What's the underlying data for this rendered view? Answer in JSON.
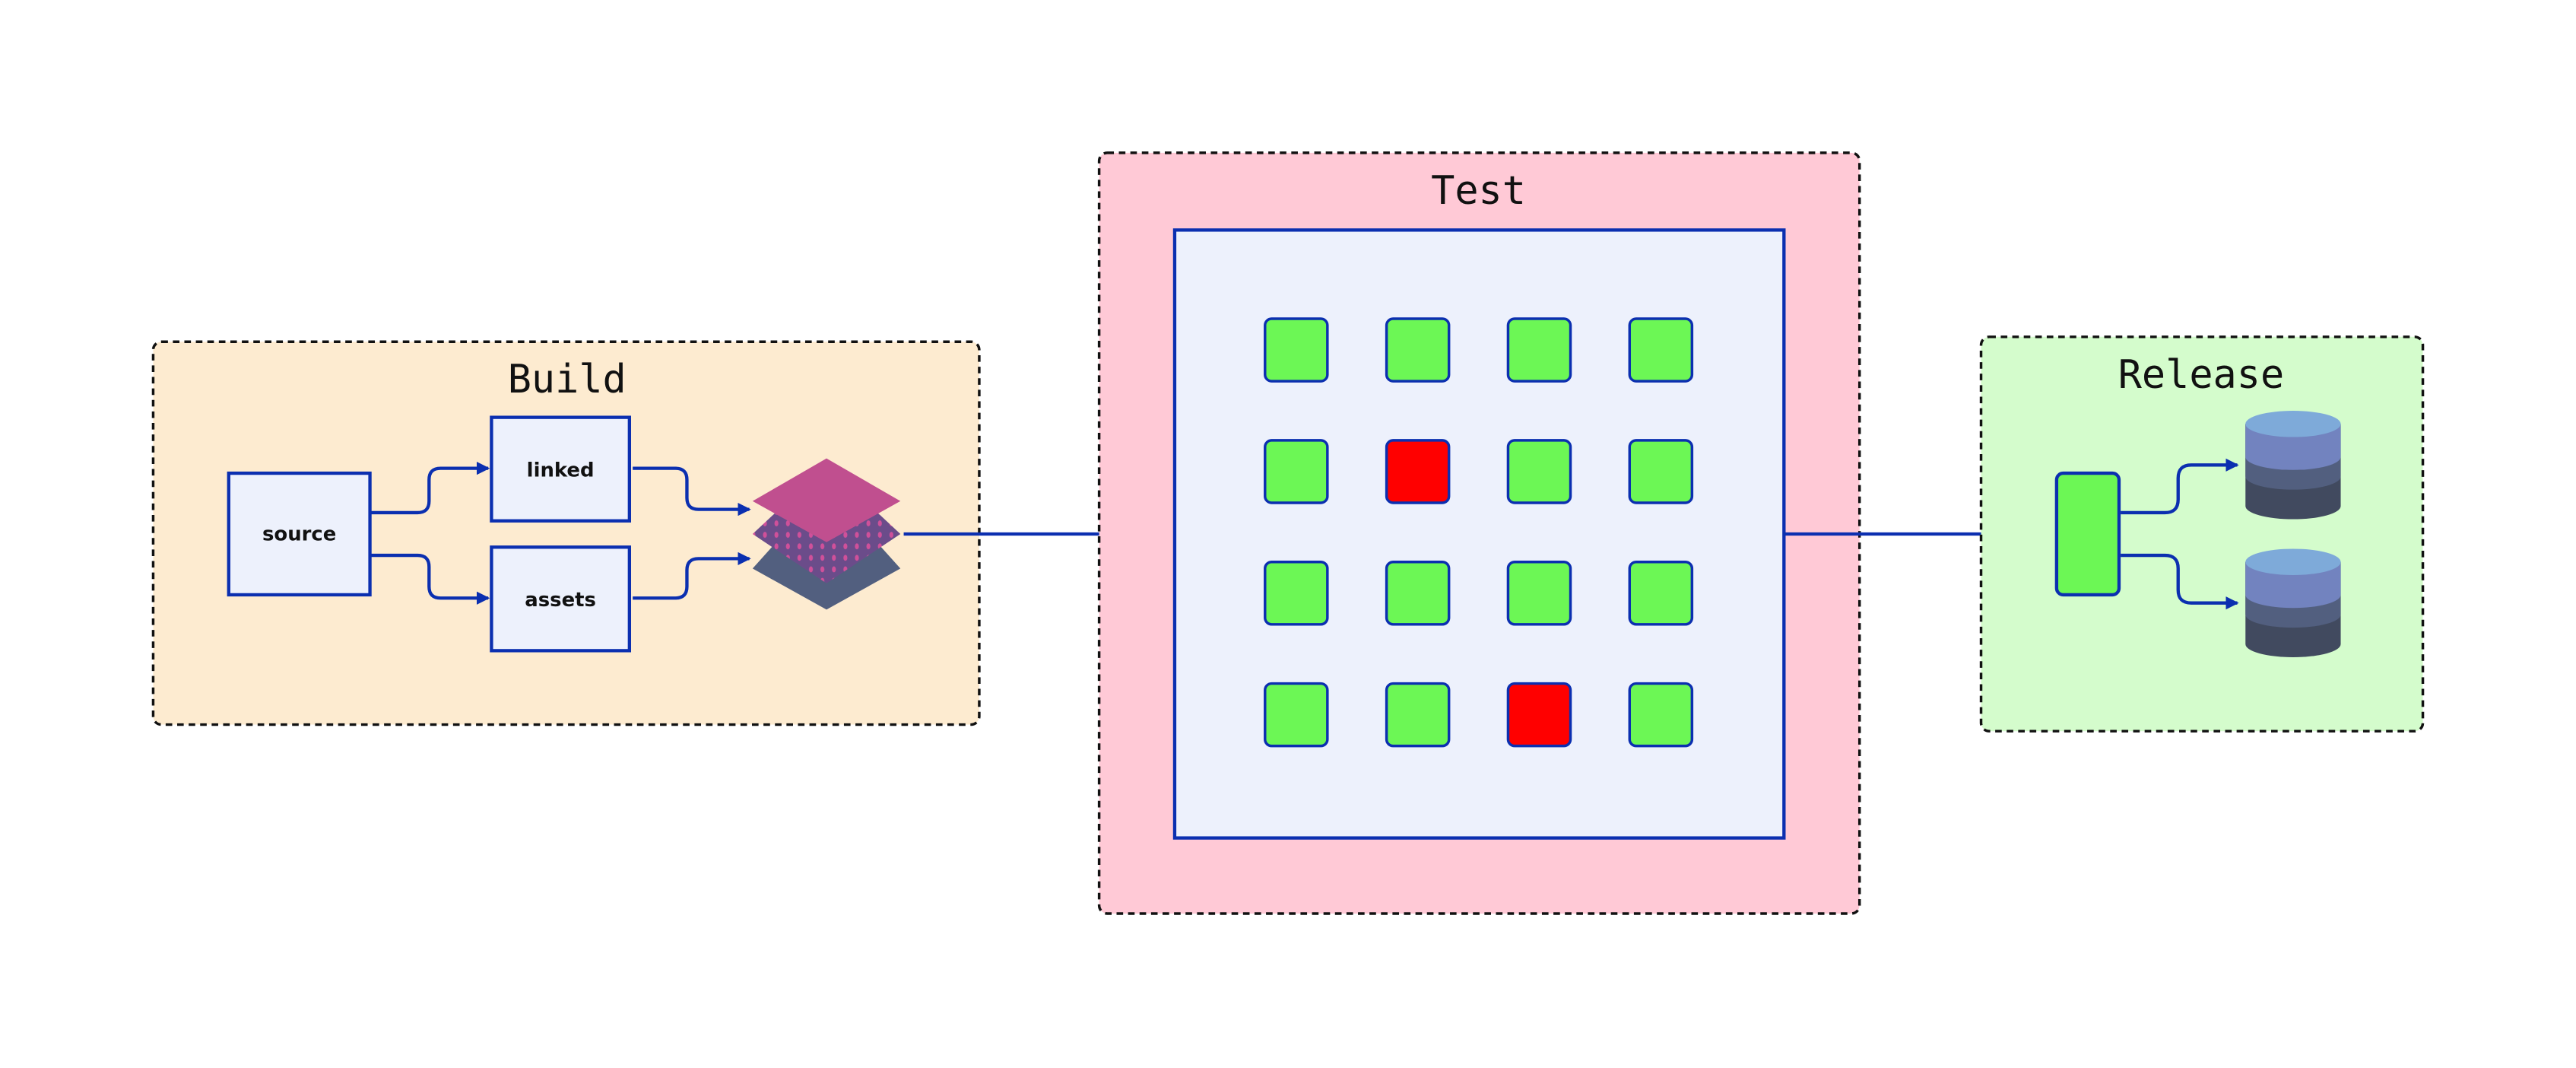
{
  "stages": {
    "build": {
      "title": "Build",
      "nodes": {
        "source": "source",
        "linked": "linked",
        "assets": "assets"
      },
      "background": "#fdebd0"
    },
    "test": {
      "title": "Test",
      "background": "#ffc9d6",
      "grid_status": [
        [
          "pass",
          "pass",
          "pass",
          "pass"
        ],
        [
          "pass",
          "fail",
          "pass",
          "pass"
        ],
        [
          "pass",
          "pass",
          "pass",
          "pass"
        ],
        [
          "pass",
          "pass",
          "fail",
          "pass"
        ]
      ]
    },
    "release": {
      "title": "Release",
      "background": "#d4fccc",
      "targets": [
        "database-icon",
        "database-icon"
      ]
    }
  },
  "colors": {
    "edge": "#0b2fb0",
    "pass": "#6cf755",
    "fail": "#ff0000",
    "node_fill": "#edf1fc"
  }
}
